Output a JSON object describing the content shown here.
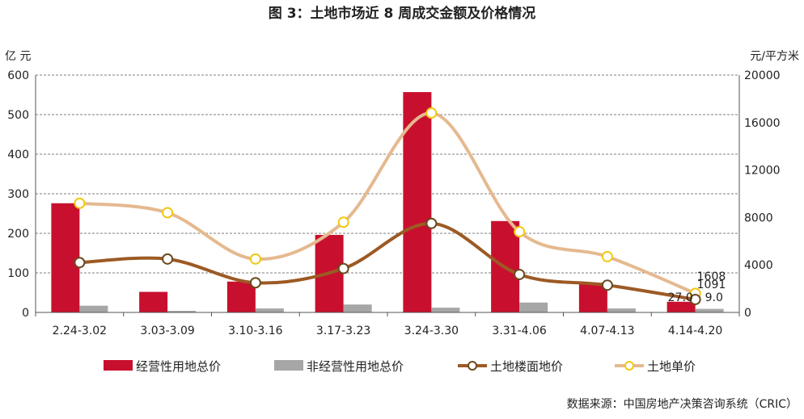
{
  "chart_data": {
    "type": "bar",
    "title": "图 3：土地市场近 8 周成交金额及价格情况",
    "left_unit": "亿 元",
    "right_unit": "元/平方米",
    "source": "数据来源：中国房地产决策咨询系统（CRIC）",
    "categories": [
      "2.24-3.02",
      "3.03-3.09",
      "3.10-3.16",
      "3.17-3.23",
      "3.24-3.30",
      "3.31-4.06",
      "4.07-4.13",
      "4.14-4.20"
    ],
    "ylim_left": [
      0,
      600
    ],
    "yticks_left": [
      "0",
      "100",
      "200",
      "300",
      "400",
      "500",
      "600"
    ],
    "ylim_right": [
      0,
      20000
    ],
    "yticks_right": [
      "0",
      "4000",
      "8000",
      "12000",
      "16000",
      "20000"
    ],
    "grid": true,
    "legend_position": "bottom",
    "series": [
      {
        "name": "经营性用地总价",
        "type": "bar",
        "axis": "left",
        "color": "#c8102e",
        "values": [
          276,
          52,
          78,
          196,
          557,
          231,
          75,
          27.0
        ]
      },
      {
        "name": "非经营性用地总价",
        "type": "bar",
        "axis": "left",
        "color": "#a6a6a6",
        "values": [
          17,
          4,
          10,
          20,
          12,
          25,
          10,
          9.0
        ]
      },
      {
        "name": "土地楼面地价",
        "type": "line",
        "axis": "right",
        "color": "#9c5a25",
        "values": [
          4200,
          4500,
          2500,
          3700,
          7500,
          3200,
          2300,
          1091
        ]
      },
      {
        "name": "土地单价",
        "type": "line",
        "axis": "right",
        "color": "#e5b98f",
        "values": [
          9200,
          8400,
          4500,
          7600,
          16800,
          6800,
          4700,
          1608
        ]
      }
    ],
    "data_labels": [
      {
        "series": "经营性用地总价",
        "index": 7,
        "text": "27.0"
      },
      {
        "series": "非经营性用地总价",
        "index": 7,
        "text": "9.0"
      },
      {
        "series": "土地楼面地价",
        "index": 7,
        "text": "1091"
      },
      {
        "series": "土地单价",
        "index": 7,
        "text": "1608"
      }
    ]
  }
}
